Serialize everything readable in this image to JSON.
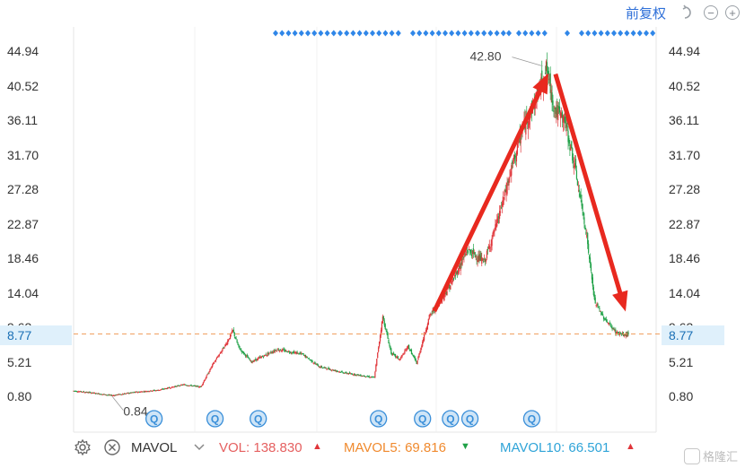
{
  "header": {
    "adjust_mode": "前复权",
    "icons": [
      "undo-icon",
      "zoom-out-icon",
      "zoom-in-icon"
    ]
  },
  "axis": {
    "ticks": [
      "44.94",
      "40.52",
      "36.11",
      "31.70",
      "27.28",
      "22.87",
      "18.46",
      "14.04",
      "9.63",
      "5.21",
      "0.80"
    ],
    "current_price": "8.77"
  },
  "annotations": {
    "high_label": "42.80",
    "low_label": "0.84"
  },
  "chart_data": {
    "type": "candlestick",
    "y_range": [
      0.8,
      44.94
    ],
    "current_price": 8.77,
    "high": 42.8,
    "low": 0.84,
    "key_path": [
      [
        0,
        1.5
      ],
      [
        25,
        1.2
      ],
      [
        45,
        0.9
      ],
      [
        70,
        1.3
      ],
      [
        100,
        1.6
      ],
      [
        130,
        2.3
      ],
      [
        150,
        2.0
      ],
      [
        165,
        5.0
      ],
      [
        180,
        7.5
      ],
      [
        188,
        9.2
      ],
      [
        195,
        7.0
      ],
      [
        210,
        5.2
      ],
      [
        240,
        6.8
      ],
      [
        270,
        6.2
      ],
      [
        290,
        4.6
      ],
      [
        320,
        3.8
      ],
      [
        355,
        3.2
      ],
      [
        365,
        11.0
      ],
      [
        375,
        6.3
      ],
      [
        385,
        5.5
      ],
      [
        395,
        7.2
      ],
      [
        405,
        5.0
      ],
      [
        420,
        11.0
      ],
      [
        445,
        15.0
      ],
      [
        465,
        19.5
      ],
      [
        485,
        18.0
      ],
      [
        500,
        23.0
      ],
      [
        515,
        29.0
      ],
      [
        530,
        35.0
      ],
      [
        545,
        38.5
      ],
      [
        558,
        42.8
      ],
      [
        568,
        37.5
      ],
      [
        580,
        36.0
      ],
      [
        592,
        30.0
      ],
      [
        605,
        22.0
      ],
      [
        615,
        13.0
      ],
      [
        625,
        11.0
      ],
      [
        640,
        9.0
      ],
      [
        650,
        8.6
      ],
      [
        655,
        8.77
      ]
    ],
    "indicator_markers": [
      {
        "x": 95,
        "text": "Q"
      },
      {
        "x": 167,
        "text": "Q"
      },
      {
        "x": 218,
        "text": "Q"
      },
      {
        "x": 360,
        "text": "Q"
      },
      {
        "x": 412,
        "text": "Q"
      },
      {
        "x": 445,
        "text": "Q"
      },
      {
        "x": 468,
        "text": "Q"
      },
      {
        "x": 541,
        "text": "Q"
      }
    ],
    "event_dot_ranges": [
      [
        225,
        367
      ],
      [
        378,
        480
      ],
      [
        485,
        488
      ],
      [
        496,
        528
      ],
      [
        550,
        553
      ],
      [
        566,
        651
      ]
    ]
  },
  "bottom_bar": {
    "indicator": "MAVOL",
    "vol": "VOL: 138.830",
    "vol_arrow": "▲",
    "mavol5": "MAVOL5: 69.816",
    "mavol5_arrow": "▼",
    "mavol10": "MAVOL10: 66.501",
    "mavol10_arrow": "▲"
  },
  "colors": {
    "up": "#e0353a",
    "down": "#1fa147",
    "arrow": "#e8291f",
    "current_line": "#f0a060",
    "event_dot": "#2f86e8",
    "marker": "#3a8fd9",
    "vol": "#e56060",
    "mavol5": "#f08a2e",
    "mavol10": "#2fa4d8"
  },
  "watermark": "格隆汇"
}
